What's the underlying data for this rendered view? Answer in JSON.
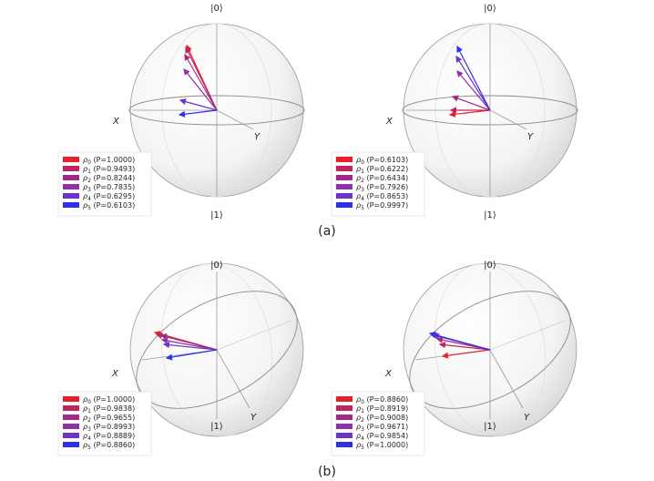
{
  "captions": [
    "(a)",
    "(b)"
  ],
  "axis_labels": {
    "north": "|0⟩",
    "south": "|1⟩",
    "x": "X",
    "y": "Y"
  },
  "colors": [
    "#e8202a",
    "#c1235d",
    "#a12a86",
    "#8d31a6",
    "#6b36c8",
    "#2f2fe6"
  ],
  "spheres": [
    {
      "legend": [
        {
          "sub": "0",
          "p": "(P=1.0000)"
        },
        {
          "sub": "1",
          "p": "(P=0.9493)"
        },
        {
          "sub": "2",
          "p": "(P=0.8244)"
        },
        {
          "sub": "3",
          "p": "(P=0.7835)"
        },
        {
          "sub": "4",
          "p": "(P=0.6295)"
        },
        {
          "sub": "5",
          "p": "(P=0.6103)"
        }
      ]
    },
    {
      "legend": [
        {
          "sub": "0",
          "p": "(P=0.6103)"
        },
        {
          "sub": "1",
          "p": "(P=0.6222)"
        },
        {
          "sub": "2",
          "p": "(P=0.6434)"
        },
        {
          "sub": "3",
          "p": "(P=0.7926)"
        },
        {
          "sub": "4",
          "p": "(P=0.8653)"
        },
        {
          "sub": "5",
          "p": "(P=0.9997)"
        }
      ]
    },
    {
      "legend": [
        {
          "sub": "0",
          "p": "(P=1.0000)"
        },
        {
          "sub": "1",
          "p": "(P=0.9838)"
        },
        {
          "sub": "2",
          "p": "(P=0.9655)"
        },
        {
          "sub": "3",
          "p": "(P=0.8993)"
        },
        {
          "sub": "4",
          "p": "(P=0.8889)"
        },
        {
          "sub": "5",
          "p": "(P=0.8860)"
        }
      ]
    },
    {
      "legend": [
        {
          "sub": "0",
          "p": "(P=0.8860)"
        },
        {
          "sub": "1",
          "p": "(P=0.8919)"
        },
        {
          "sub": "2",
          "p": "(P=0.9008)"
        },
        {
          "sub": "3",
          "p": "(P=0.9671)"
        },
        {
          "sub": "4",
          "p": "(P=0.9854)"
        },
        {
          "sub": "5",
          "p": "(P=1.0000)"
        }
      ]
    }
  ]
}
